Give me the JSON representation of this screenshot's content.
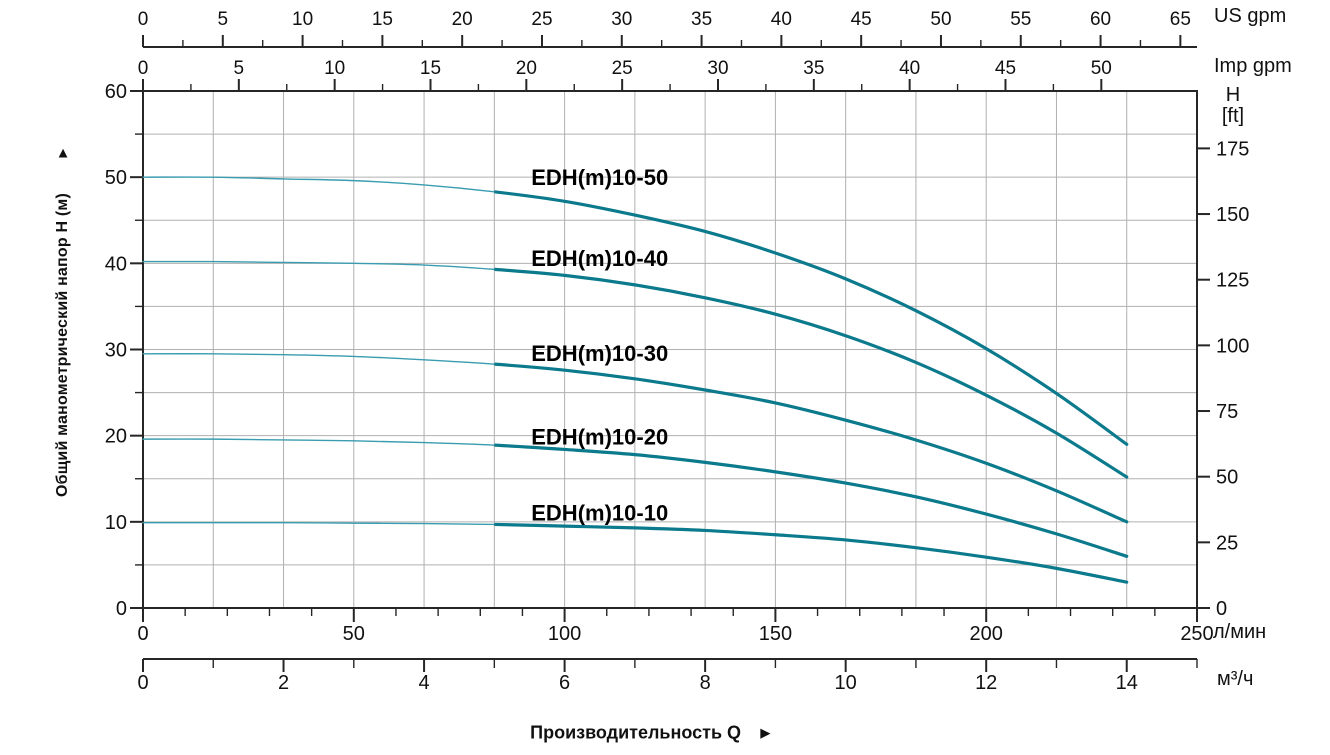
{
  "page": {
    "background": "#ffffff"
  },
  "chart_data": {
    "type": "line",
    "title": "",
    "x_axis_title": {
      "text": "Производительность Q",
      "arrow": "►"
    },
    "y_axis_title": {
      "text": "Общий манометрический напор H (м)",
      "arrow": "▲"
    },
    "axes": {
      "top_us_gpm": {
        "unit_label": "US gpm",
        "major_ticks": [
          0,
          5,
          10,
          15,
          20,
          25,
          30,
          35,
          40,
          45,
          50,
          55,
          60,
          65
        ],
        "minor_step": 2.5,
        "max": 65,
        "lpm_per_unit": 3.78541
      },
      "top_imp_gpm": {
        "unit_label": "Imp gpm",
        "major_ticks": [
          0,
          5,
          10,
          15,
          20,
          25,
          30,
          35,
          40,
          45,
          50
        ],
        "minor_step": 2.5,
        "max": 50,
        "lpm_per_unit": 4.54609
      },
      "bottom_lpm": {
        "unit_label": "л/мин",
        "major_ticks": [
          0,
          50,
          100,
          150,
          200,
          250
        ],
        "minor_step": 10,
        "max": 250
      },
      "bottom_m3h": {
        "unit_label": "м³/ч",
        "major_ticks": [
          0,
          2,
          4,
          6,
          8,
          10,
          12,
          14
        ],
        "minor_step": 1,
        "max": 15,
        "lpm_per_unit": 16.6667
      },
      "left_head_m": {
        "unit_label": "H (м)",
        "major_ticks": [
          0,
          10,
          20,
          30,
          40,
          50,
          60
        ],
        "minor_step": 5,
        "max": 60
      },
      "right_head_ft": {
        "unit_label_lines": [
          "H",
          "[ft]"
        ],
        "major_ticks": [
          0,
          25,
          50,
          75,
          100,
          125,
          150,
          175
        ],
        "m_per_unit": 0.3048
      }
    },
    "grid": {
      "x_step_m3h": 1,
      "y_step_m": 5,
      "on": true
    },
    "series": [
      {
        "name": "EDH(m)10-50",
        "label_pos": {
          "q": 6.5,
          "h": 50.0
        },
        "points_q_m3h_h_m": [
          [
            0,
            50
          ],
          [
            1,
            50
          ],
          [
            2,
            49.8
          ],
          [
            3,
            49.6
          ],
          [
            4,
            49.1
          ],
          [
            5,
            48.3
          ],
          [
            6,
            47.2
          ],
          [
            7,
            45.6
          ],
          [
            8,
            43.7
          ],
          [
            9,
            41.2
          ],
          [
            10,
            38.2
          ],
          [
            11,
            34.5
          ],
          [
            12,
            30.1
          ],
          [
            13,
            24.9
          ],
          [
            14,
            19.0
          ]
        ]
      },
      {
        "name": "EDH(m)10-40",
        "label_pos": {
          "q": 6.5,
          "h": 40.6
        },
        "points_q_m3h_h_m": [
          [
            0,
            40.2
          ],
          [
            1,
            40.2
          ],
          [
            2,
            40.1
          ],
          [
            3,
            40.0
          ],
          [
            4,
            39.8
          ],
          [
            5,
            39.3
          ],
          [
            6,
            38.6
          ],
          [
            7,
            37.5
          ],
          [
            8,
            36.0
          ],
          [
            9,
            34.1
          ],
          [
            10,
            31.6
          ],
          [
            11,
            28.5
          ],
          [
            12,
            24.7
          ],
          [
            13,
            20.3
          ],
          [
            14,
            15.2
          ]
        ]
      },
      {
        "name": "EDH(m)10-30",
        "label_pos": {
          "q": 6.5,
          "h": 29.6
        },
        "points_q_m3h_h_m": [
          [
            0,
            29.5
          ],
          [
            1,
            29.5
          ],
          [
            2,
            29.4
          ],
          [
            3,
            29.2
          ],
          [
            4,
            28.8
          ],
          [
            5,
            28.3
          ],
          [
            6,
            27.6
          ],
          [
            7,
            26.6
          ],
          [
            8,
            25.3
          ],
          [
            9,
            23.8
          ],
          [
            10,
            21.8
          ],
          [
            11,
            19.5
          ],
          [
            12,
            16.8
          ],
          [
            13,
            13.6
          ],
          [
            14,
            10.0
          ]
        ]
      },
      {
        "name": "EDH(m)10-20",
        "label_pos": {
          "q": 6.5,
          "h": 19.9
        },
        "points_q_m3h_h_m": [
          [
            0,
            19.6
          ],
          [
            1,
            19.6
          ],
          [
            2,
            19.5
          ],
          [
            3,
            19.4
          ],
          [
            4,
            19.2
          ],
          [
            5,
            18.9
          ],
          [
            6,
            18.4
          ],
          [
            7,
            17.8
          ],
          [
            8,
            16.9
          ],
          [
            9,
            15.8
          ],
          [
            10,
            14.5
          ],
          [
            11,
            12.9
          ],
          [
            12,
            10.9
          ],
          [
            13,
            8.6
          ],
          [
            14,
            6.0
          ]
        ]
      },
      {
        "name": "EDH(m)10-10",
        "label_pos": {
          "q": 6.5,
          "h": 11.1
        },
        "points_q_m3h_h_m": [
          [
            0,
            9.9
          ],
          [
            1,
            9.9
          ],
          [
            2,
            9.9
          ],
          [
            3,
            9.85
          ],
          [
            4,
            9.8
          ],
          [
            5,
            9.7
          ],
          [
            6,
            9.5
          ],
          [
            7,
            9.3
          ],
          [
            8,
            9.0
          ],
          [
            9,
            8.5
          ],
          [
            10,
            7.9
          ],
          [
            11,
            7.0
          ],
          [
            12,
            5.9
          ],
          [
            13,
            4.6
          ],
          [
            14,
            3.0
          ]
        ]
      }
    ],
    "style": {
      "curve_color": "#0c7a8d",
      "curve_color_thin": "#3a9cb0",
      "thin_until_q_m3h": 5,
      "grid_color": "#b0b0b0",
      "axis_color": "#262626",
      "text_color": "#111111",
      "curve_label_color": "#000000"
    }
  }
}
